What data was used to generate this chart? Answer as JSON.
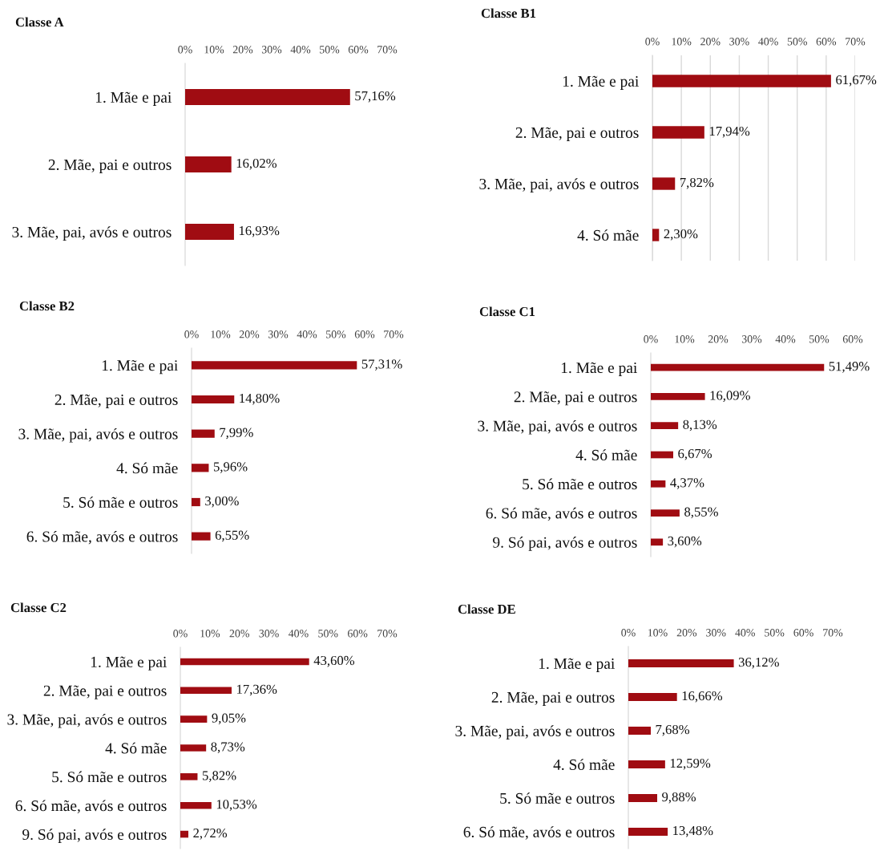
{
  "chart_data": [
    {
      "type": "bar",
      "orientation": "horizontal",
      "title": "Classe A",
      "categories": [
        "1. Mãe e pai",
        "2. Mãe, pai e outros",
        "3. Mãe, pai, avós e outros"
      ],
      "values": [
        57.16,
        16.02,
        16.93
      ],
      "value_labels": [
        "57,16%",
        "16,02%",
        "16,93%"
      ],
      "color": "#a00c12",
      "xlim": [
        0,
        70
      ],
      "xticks": [
        {
          "value": 0,
          "label": "0%"
        },
        {
          "value": 10,
          "label": "10%"
        },
        {
          "value": 20,
          "label": "20%"
        },
        {
          "value": 30,
          "label": "30%"
        },
        {
          "value": 40,
          "label": "40%"
        },
        {
          "value": 50,
          "label": "50%"
        },
        {
          "value": 60,
          "label": "60%"
        },
        {
          "value": 70,
          "label": "70%"
        }
      ]
    },
    {
      "type": "bar",
      "orientation": "horizontal",
      "title": "Classe B1",
      "categories": [
        "1. Mãe e pai",
        "2. Mãe, pai e outros",
        "3. Mãe, pai, avós e outros",
        "4. Só mãe"
      ],
      "values": [
        61.67,
        17.94,
        7.82,
        2.3
      ],
      "value_labels": [
        "61,67%",
        "17,94%",
        "7,82%",
        "2,30%"
      ],
      "color": "#a00c12",
      "xlim": [
        0,
        70
      ],
      "xticks": [
        {
          "value": 0,
          "label": "0%"
        },
        {
          "value": 10,
          "label": "10%"
        },
        {
          "value": 20,
          "label": "20%"
        },
        {
          "value": 30,
          "label": "30%"
        },
        {
          "value": 40,
          "label": "40%"
        },
        {
          "value": 50,
          "label": "50%"
        },
        {
          "value": 60,
          "label": "60%"
        },
        {
          "value": 70,
          "label": "70%"
        }
      ],
      "grid": "x"
    },
    {
      "type": "bar",
      "orientation": "horizontal",
      "title": "Classe B2",
      "categories": [
        "1. Mãe e pai",
        "2. Mãe, pai e outros",
        "3. Mãe, pai, avós e outros",
        "4. Só mãe",
        "5. Só mãe e outros",
        "6. Só mãe, avós e outros"
      ],
      "values": [
        57.31,
        14.8,
        7.99,
        5.96,
        3.0,
        6.55
      ],
      "value_labels": [
        "57,31%",
        "14,80%",
        "7,99%",
        "5,96%",
        "3,00%",
        "6,55%"
      ],
      "color": "#a00c12",
      "xlim": [
        0,
        70
      ],
      "xticks": [
        {
          "value": 0,
          "label": "0%"
        },
        {
          "value": 10,
          "label": "10%"
        },
        {
          "value": 20,
          "label": "20%"
        },
        {
          "value": 30,
          "label": "30%"
        },
        {
          "value": 40,
          "label": "40%"
        },
        {
          "value": 50,
          "label": "50%"
        },
        {
          "value": 60,
          "label": "60%"
        },
        {
          "value": 70,
          "label": "70%"
        }
      ]
    },
    {
      "type": "bar",
      "orientation": "horizontal",
      "title": "Classe C1",
      "categories": [
        "1. Mãe e pai",
        "2. Mãe, pai e outros",
        "3. Mãe, pai, avós e outros",
        "4. Só mãe",
        "5. Só mãe e outros",
        "6. Só mãe, avós e outros",
        "9. Só pai, avós e outros"
      ],
      "values": [
        51.49,
        16.09,
        8.13,
        6.67,
        4.37,
        8.55,
        3.6
      ],
      "value_labels": [
        "51,49%",
        "16,09%",
        "8,13%",
        "6,67%",
        "4,37%",
        "8,55%",
        "3,60%"
      ],
      "color": "#a00c12",
      "xlim": [
        0,
        60
      ],
      "xticks": [
        {
          "value": 0,
          "label": "0%"
        },
        {
          "value": 10,
          "label": "10%"
        },
        {
          "value": 20,
          "label": "20%"
        },
        {
          "value": 30,
          "label": "30%"
        },
        {
          "value": 40,
          "label": "40%"
        },
        {
          "value": 50,
          "label": "50%"
        },
        {
          "value": 60,
          "label": "60%"
        }
      ]
    },
    {
      "type": "bar",
      "orientation": "horizontal",
      "title": "Classe C2",
      "categories": [
        "1. Mãe e pai",
        "2. Mãe, pai e outros",
        "3. Mãe, pai, avós e outros",
        "4. Só mãe",
        "5. Só mãe e outros",
        "6. Só mãe, avós e outros",
        "9. Só pai, avós e outros"
      ],
      "values": [
        43.6,
        17.36,
        9.05,
        8.73,
        5.82,
        10.53,
        2.72
      ],
      "value_labels": [
        "43,60%",
        "17,36%",
        "9,05%",
        "8,73%",
        "5,82%",
        "10,53%",
        "2,72%"
      ],
      "color": "#a00c12",
      "xlim": [
        0,
        70
      ],
      "xticks": [
        {
          "value": 0,
          "label": "0%"
        },
        {
          "value": 10,
          "label": "10%"
        },
        {
          "value": 20,
          "label": "20%"
        },
        {
          "value": 30,
          "label": "30%"
        },
        {
          "value": 40,
          "label": "40%"
        },
        {
          "value": 50,
          "label": "50%"
        },
        {
          "value": 60,
          "label": "60%"
        },
        {
          "value": 70,
          "label": "70%"
        }
      ]
    },
    {
      "type": "bar",
      "orientation": "horizontal",
      "title": "Classe DE",
      "categories": [
        "1. Mãe e pai",
        "2. Mãe, pai e outros",
        "3. Mãe, pai, avós e outros",
        "4. Só mãe",
        "5. Só mãe e outros",
        "6. Só mãe, avós e outros"
      ],
      "values": [
        36.12,
        16.66,
        7.68,
        12.59,
        9.88,
        13.48
      ],
      "value_labels": [
        "36,12%",
        "16,66%",
        "7,68%",
        "12,59%",
        "9,88%",
        "13,48%"
      ],
      "color": "#a00c12",
      "xlim": [
        0,
        70
      ],
      "xticks": [
        {
          "value": 0,
          "label": "0%"
        },
        {
          "value": 10,
          "label": "10%"
        },
        {
          "value": 20,
          "label": "20%"
        },
        {
          "value": 30,
          "label": "30%"
        },
        {
          "value": 40,
          "label": "40%"
        },
        {
          "value": 50,
          "label": "50%"
        },
        {
          "value": 60,
          "label": "60%"
        },
        {
          "value": 70,
          "label": "70%"
        }
      ]
    }
  ]
}
